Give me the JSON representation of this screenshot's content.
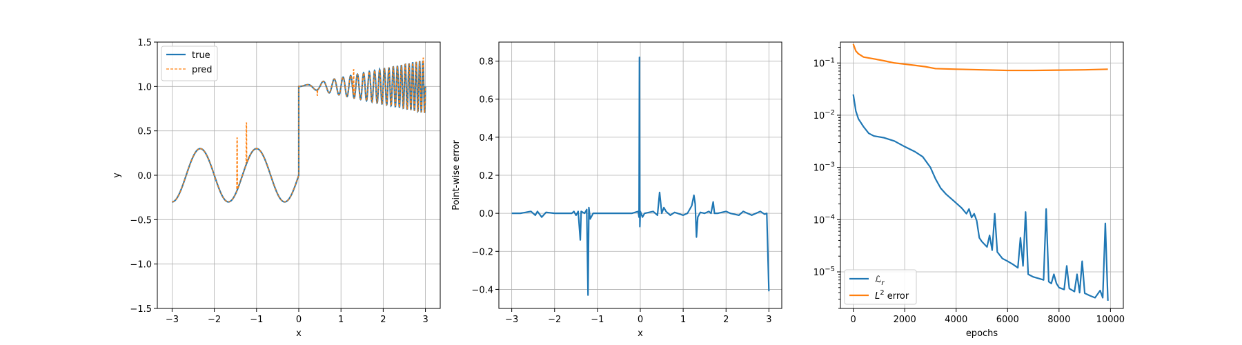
{
  "chart_data": [
    {
      "type": "line",
      "xlabel": "x",
      "ylabel": "y",
      "xlim": [
        -3.35,
        3.35
      ],
      "ylim": [
        -1.5,
        1.5
      ],
      "xticks": [
        "−3",
        "−2",
        "−1",
        "0",
        "1",
        "2",
        "3"
      ],
      "yticks": [
        "−1.5",
        "−1.0",
        "−0.5",
        "0.0",
        "0.5",
        "1.0",
        "1.5"
      ],
      "grid": true,
      "legend_position": "top-left",
      "series": [
        {
          "name": "true",
          "color": "#1f77b4",
          "style": "solid",
          "function": "x < 0: 0.3*sin(1.5*pi*x); x >= 0: 1 + 0.1*x*sin(2*pi*(1+2x)*x)",
          "x_range": [
            -3,
            3
          ]
        },
        {
          "name": "pred",
          "color": "#ff7f0e",
          "style": "dashed",
          "note_spikes": [
            [
              -1.46,
              0.42
            ],
            [
              -1.24,
              0.59
            ],
            [
              -1.18,
              0.19
            ],
            [
              0.44,
              0.9
            ],
            [
              1.3,
              1.19
            ],
            [
              2.95,
              1.32
            ]
          ]
        }
      ]
    },
    {
      "type": "line",
      "xlabel": "x",
      "ylabel": "Point-wise error",
      "xlim": [
        -3.3,
        3.3
      ],
      "ylim": [
        -0.5,
        0.9
      ],
      "xticks": [
        "−3",
        "−2",
        "−1",
        "0",
        "1",
        "2",
        "3"
      ],
      "yticks": [
        "−0.4",
        "−0.2",
        "0.0",
        "0.2",
        "0.4",
        "0.6",
        "0.8"
      ],
      "grid": true,
      "series": [
        {
          "name": "",
          "color": "#1f77b4",
          "points": [
            [
              -3,
              0
            ],
            [
              -2.8,
              0
            ],
            [
              -2.55,
              0.01
            ],
            [
              -2.45,
              -0.01
            ],
            [
              -2.4,
              0.01
            ],
            [
              -2.3,
              -0.02
            ],
            [
              -2.2,
              0.005
            ],
            [
              -2.0,
              0
            ],
            [
              -1.8,
              0
            ],
            [
              -1.6,
              0
            ],
            [
              -1.55,
              0.01
            ],
            [
              -1.5,
              -0.01
            ],
            [
              -1.45,
              0.01
            ],
            [
              -1.4,
              -0.14
            ],
            [
              -1.38,
              0.01
            ],
            [
              -1.3,
              0
            ],
            [
              -1.25,
              0.02
            ],
            [
              -1.22,
              -0.43
            ],
            [
              -1.2,
              0.03
            ],
            [
              -1.17,
              -0.03
            ],
            [
              -1.1,
              0
            ],
            [
              -0.8,
              0
            ],
            [
              -0.5,
              0
            ],
            [
              -0.2,
              0
            ],
            [
              -0.05,
              0.01
            ],
            [
              -0.03,
              -0.02
            ],
            [
              -0.02,
              0.82
            ],
            [
              -0.01,
              -0.07
            ],
            [
              0.0,
              0.01
            ],
            [
              0.05,
              -0.02
            ],
            [
              0.1,
              0
            ],
            [
              0.3,
              0.01
            ],
            [
              0.4,
              -0.01
            ],
            [
              0.45,
              0.11
            ],
            [
              0.5,
              0.0
            ],
            [
              0.55,
              0.03
            ],
            [
              0.6,
              0.01
            ],
            [
              0.7,
              -0.01
            ],
            [
              0.8,
              0.005
            ],
            [
              1.0,
              -0.01
            ],
            [
              1.1,
              0.0
            ],
            [
              1.2,
              0.04
            ],
            [
              1.25,
              0.095
            ],
            [
              1.28,
              0.05
            ],
            [
              1.31,
              -0.125
            ],
            [
              1.34,
              -0.02
            ],
            [
              1.4,
              0.005
            ],
            [
              1.5,
              0
            ],
            [
              1.6,
              0.01
            ],
            [
              1.65,
              0.0
            ],
            [
              1.7,
              0.06
            ],
            [
              1.73,
              0.0
            ],
            [
              1.8,
              0.0
            ],
            [
              2.0,
              0.01
            ],
            [
              2.1,
              0.0
            ],
            [
              2.3,
              -0.01
            ],
            [
              2.4,
              0.01
            ],
            [
              2.5,
              0.0
            ],
            [
              2.6,
              -0.01
            ],
            [
              2.7,
              0.0
            ],
            [
              2.8,
              0.01
            ],
            [
              2.9,
              -0.005
            ],
            [
              2.95,
              0.0
            ],
            [
              3.0,
              -0.41
            ]
          ]
        }
      ]
    },
    {
      "type": "line",
      "xlabel": "epochs",
      "ylabel": "",
      "xlim": [
        -500,
        10500
      ],
      "ylim_log10": [
        -5.7,
        -0.6
      ],
      "yscale": "log",
      "xticks": [
        "0",
        "2000",
        "4000",
        "6000",
        "8000",
        "10000"
      ],
      "ytick_exponents": [
        "−5",
        "−4",
        "−3",
        "−2",
        "−1"
      ],
      "grid": true,
      "legend_position": "bottom-left",
      "series": [
        {
          "name": "ℒ",
          "name_sub": "r",
          "color": "#1f77b4",
          "points": [
            [
              0,
              0.025
            ],
            [
              100,
              0.012
            ],
            [
              200,
              0.0085
            ],
            [
              400,
              0.006
            ],
            [
              600,
              0.0045
            ],
            [
              800,
              0.004
            ],
            [
              1200,
              0.0037
            ],
            [
              1600,
              0.0032
            ],
            [
              2000,
              0.0025
            ],
            [
              2400,
              0.002
            ],
            [
              2700,
              0.0016
            ],
            [
              3000,
              0.001
            ],
            [
              3200,
              0.0006
            ],
            [
              3400,
              0.0004
            ],
            [
              3600,
              0.00031
            ],
            [
              3900,
              0.00023
            ],
            [
              4200,
              0.00017
            ],
            [
              4400,
              0.00013
            ],
            [
              4500,
              0.00016
            ],
            [
              4600,
              0.00011
            ],
            [
              4700,
              0.00013
            ],
            [
              4800,
              9.5e-05
            ],
            [
              4900,
              4.5e-05
            ],
            [
              5000,
              3.8e-05
            ],
            [
              5200,
              3e-05
            ],
            [
              5300,
              5e-05
            ],
            [
              5400,
              2.6e-05
            ],
            [
              5500,
              0.00013
            ],
            [
              5600,
              2.4e-05
            ],
            [
              5800,
              1.8e-05
            ],
            [
              6000,
              1.6e-05
            ],
            [
              6200,
              1.4e-05
            ],
            [
              6400,
              1.2e-05
            ],
            [
              6500,
              4.5e-05
            ],
            [
              6600,
              1.3e-05
            ],
            [
              6700,
              0.00014
            ],
            [
              6800,
              9e-06
            ],
            [
              7000,
              8e-06
            ],
            [
              7200,
              7.5e-06
            ],
            [
              7400,
              7e-06
            ],
            [
              7500,
              0.00016
            ],
            [
              7600,
              6.5e-06
            ],
            [
              7700,
              6e-06
            ],
            [
              7800,
              9e-06
            ],
            [
              7900,
              6e-06
            ],
            [
              8000,
              5e-06
            ],
            [
              8200,
              4.6e-06
            ],
            [
              8300,
              1.3e-05
            ],
            [
              8400,
              4.8e-06
            ],
            [
              8600,
              4.2e-06
            ],
            [
              8700,
              9e-06
            ],
            [
              8800,
              4e-06
            ],
            [
              8900,
              1.6e-05
            ],
            [
              9000,
              3.9e-06
            ],
            [
              9200,
              3.5e-06
            ],
            [
              9400,
              3.2e-06
            ],
            [
              9600,
              4.4e-06
            ],
            [
              9700,
              3.2e-06
            ],
            [
              9800,
              8.5e-05
            ],
            [
              9900,
              2.8e-06
            ]
          ]
        },
        {
          "name": "L",
          "name_sup": "2",
          "name_suffix": " error",
          "color": "#ff7f0e",
          "points": [
            [
              0,
              0.23
            ],
            [
              100,
              0.17
            ],
            [
              200,
              0.15
            ],
            [
              400,
              0.13
            ],
            [
              800,
              0.12
            ],
            [
              1200,
              0.11
            ],
            [
              1600,
              0.1
            ],
            [
              2000,
              0.095
            ],
            [
              2400,
              0.09
            ],
            [
              2800,
              0.085
            ],
            [
              3200,
              0.078
            ],
            [
              4000,
              0.076
            ],
            [
              5000,
              0.074
            ],
            [
              6000,
              0.072
            ],
            [
              7000,
              0.072
            ],
            [
              8000,
              0.073
            ],
            [
              9000,
              0.074
            ],
            [
              9900,
              0.076
            ]
          ]
        }
      ]
    }
  ]
}
